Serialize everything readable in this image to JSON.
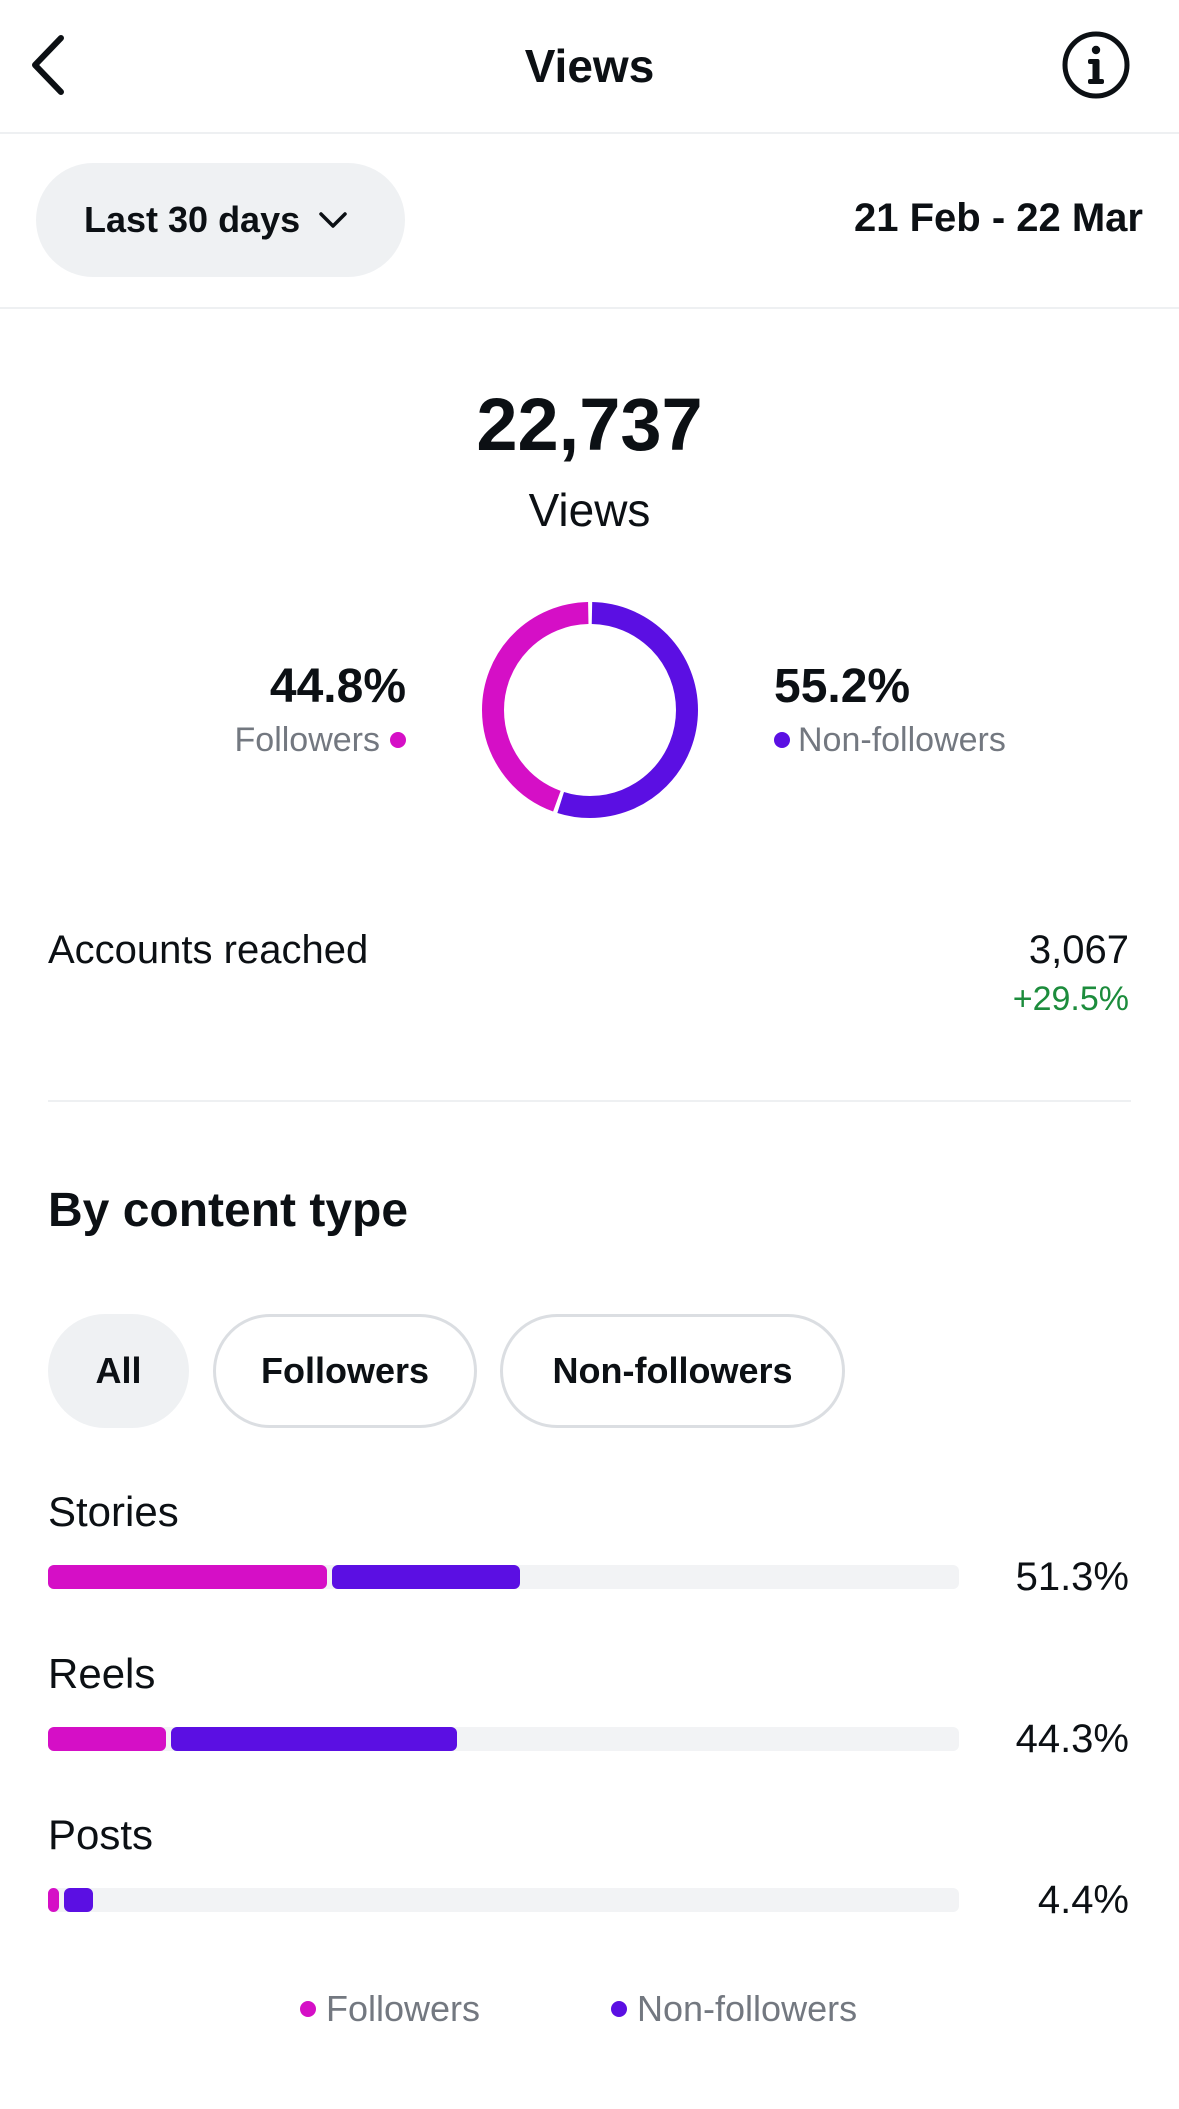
{
  "header": {
    "title": "Views",
    "back_icon": "chevron-left-icon",
    "info_icon": "info-icon"
  },
  "range": {
    "selected": "Last 30 days",
    "dates": "21 Feb - 22 Mar"
  },
  "summary": {
    "total": "22,737",
    "label": "Views",
    "followers_pct_text": "44.8%",
    "followers_label": "Followers",
    "nonfollowers_pct_text": "55.2%",
    "nonfollowers_label": "Non-followers",
    "followers_fraction": 0.448,
    "nonfollowers_fraction": 0.552
  },
  "accounts": {
    "label": "Accounts reached",
    "value": "3,067",
    "change": "+29.5%"
  },
  "content_type": {
    "title": "By content type",
    "tabs": [
      "All",
      "Followers",
      "Non-followers"
    ],
    "rows": [
      {
        "label": "Stories",
        "pct_text": "51.3%",
        "followers_share": 0.306,
        "nonfollowers_share": 0.207
      },
      {
        "label": "Reels",
        "pct_text": "44.3%",
        "followers_share": 0.129,
        "nonfollowers_share": 0.314
      },
      {
        "label": "Posts",
        "pct_text": "4.4%",
        "followers_share": 0.012,
        "nonfollowers_share": 0.032
      }
    ]
  },
  "legend": {
    "followers": "Followers",
    "nonfollowers": "Non-followers"
  },
  "colors": {
    "followers": "#d50fc6",
    "nonfollowers": "#5b0fe3",
    "positive": "#1c8c3c",
    "muted_text": "#737880",
    "track": "#f2f3f5"
  }
}
